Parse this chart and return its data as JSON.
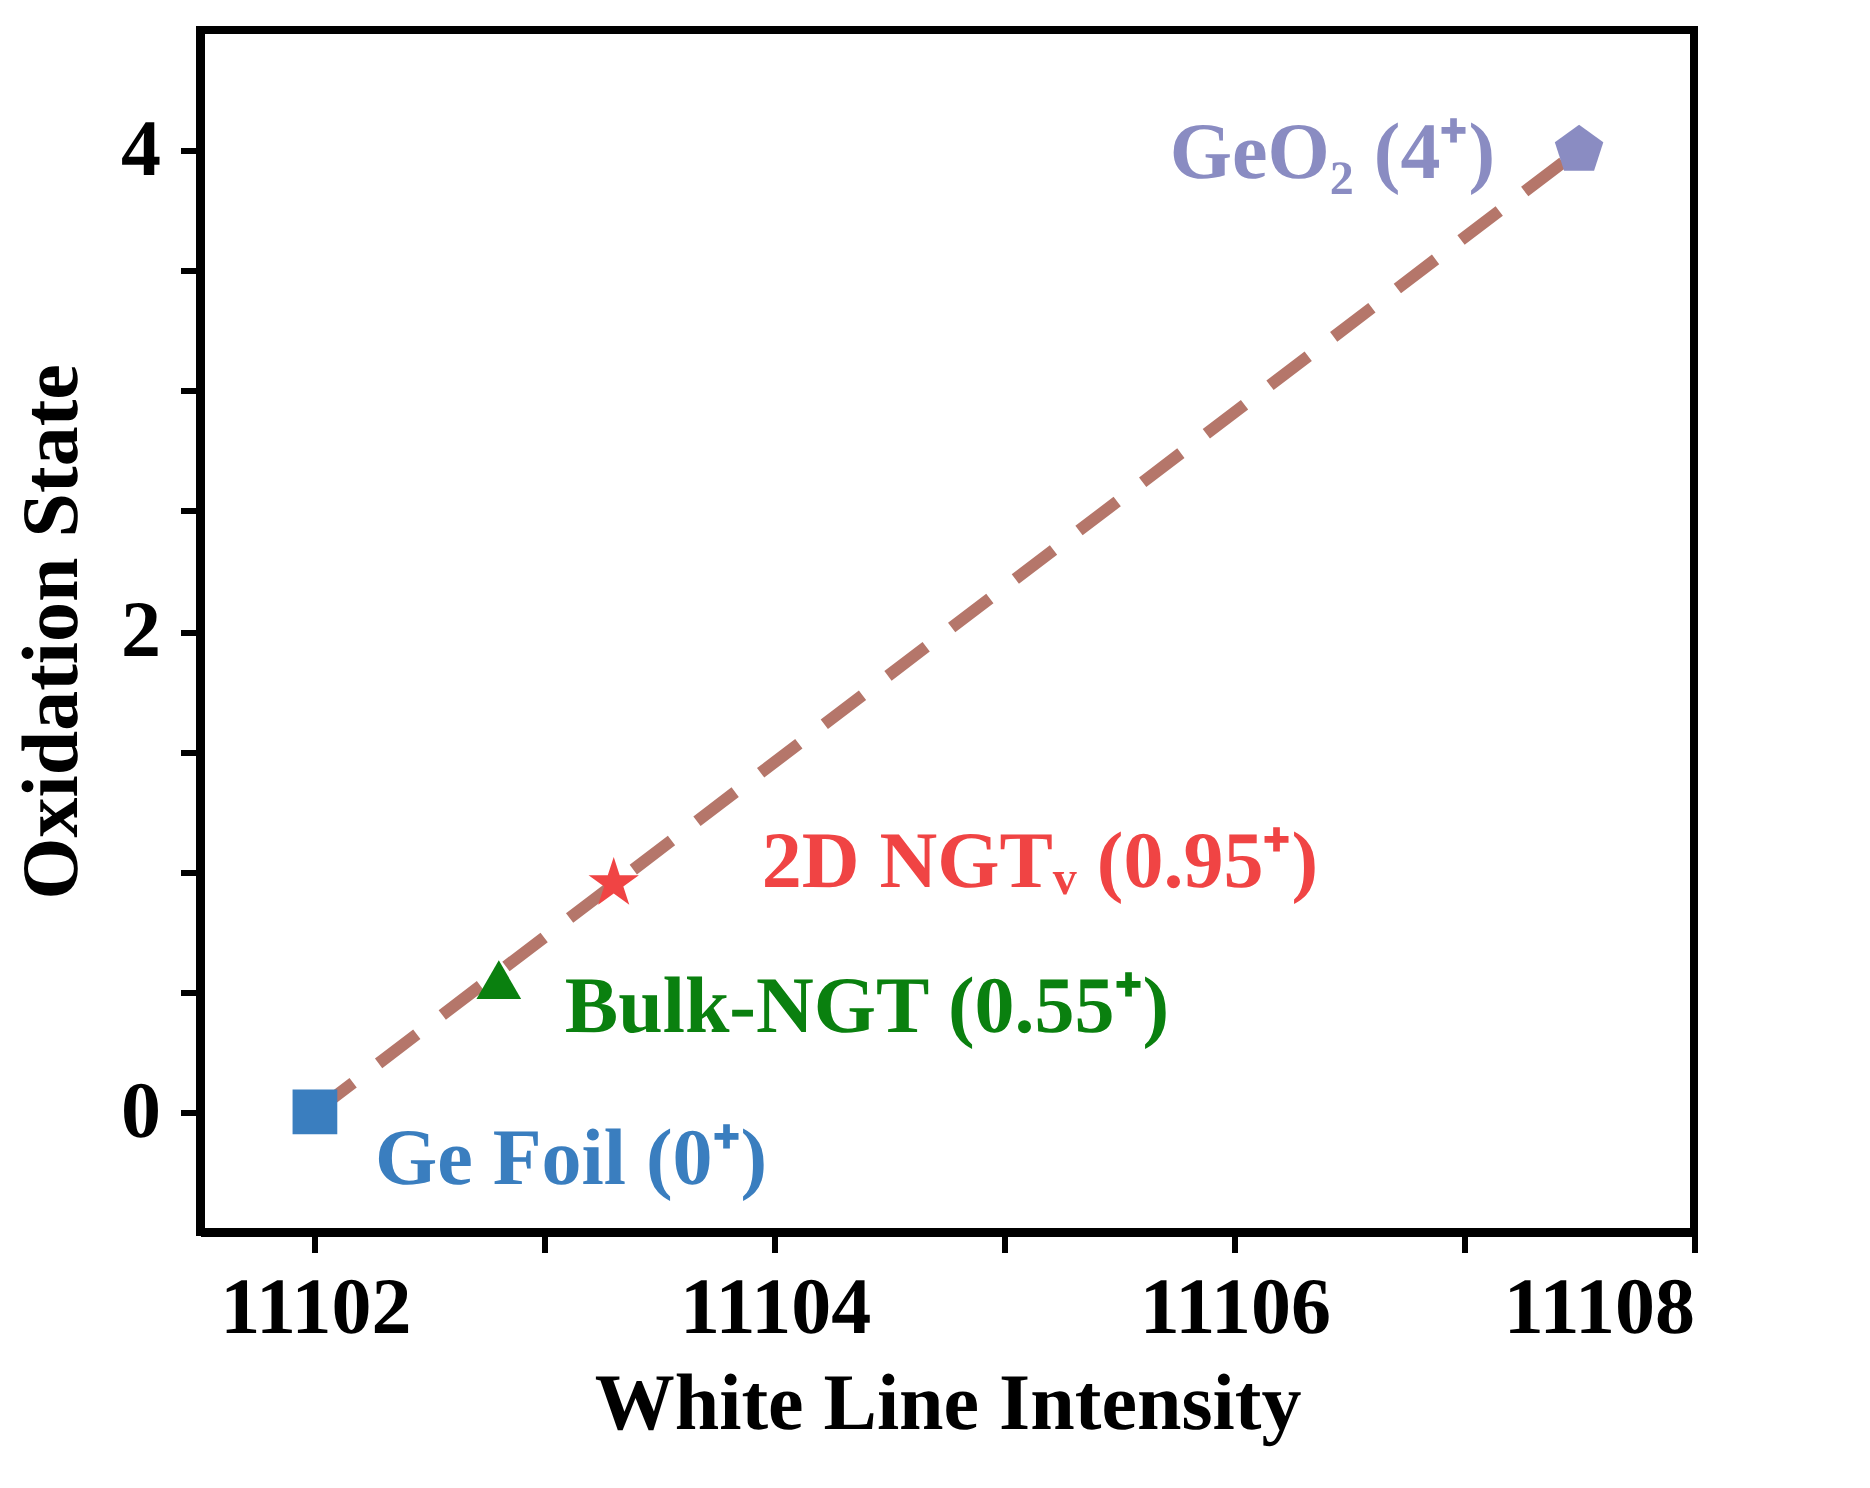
{
  "chart_data": {
    "type": "scatter",
    "xlabel": "White Line Intensity",
    "ylabel": "Oxidation State",
    "xlim": [
      11101.5,
      11108
    ],
    "ylim": [
      -0.5,
      4.5
    ],
    "xticks": [
      11102,
      {
        "value": 11103,
        "label": null
      },
      11104,
      {
        "value": 11105,
        "label": null
      },
      11106,
      {
        "value": 11107,
        "label": null
      },
      11108
    ],
    "yticks": [
      0,
      {
        "value": 0.5,
        "label": null
      },
      {
        "value": 1,
        "label": null
      },
      {
        "value": 1.5,
        "label": null
      },
      2,
      {
        "value": 2.5,
        "label": null
      },
      {
        "value": 3,
        "label": null
      },
      {
        "value": 3.5,
        "label": null
      },
      4
    ],
    "grid": false,
    "series": [
      {
        "type": "line",
        "x": [
          11102,
          11107.5
        ],
        "values": [
          0,
          4
        ],
        "color": "#b5766a",
        "line_style": "dashed",
        "marker": "none"
      },
      {
        "name": "Ge Foil (0⁺)",
        "x": [
          11102
        ],
        "values": [
          0
        ],
        "color": "#3a7ebf",
        "marker": "square"
      },
      {
        "name": "Bulk-NGT (0.55⁺)",
        "x": [
          11102.8
        ],
        "values": [
          0.55
        ],
        "color": "#0a800f",
        "marker": "triangle"
      },
      {
        "name": "2D NGTᵥ (0.95⁺)",
        "x": [
          11103.3
        ],
        "values": [
          0.95
        ],
        "color": "#f04444",
        "marker": "star"
      },
      {
        "name": "GeO₂ (4⁺)",
        "x": [
          11107.5
        ],
        "values": [
          4
        ],
        "color": "#8a8cc2"
      }
    ]
  }
}
